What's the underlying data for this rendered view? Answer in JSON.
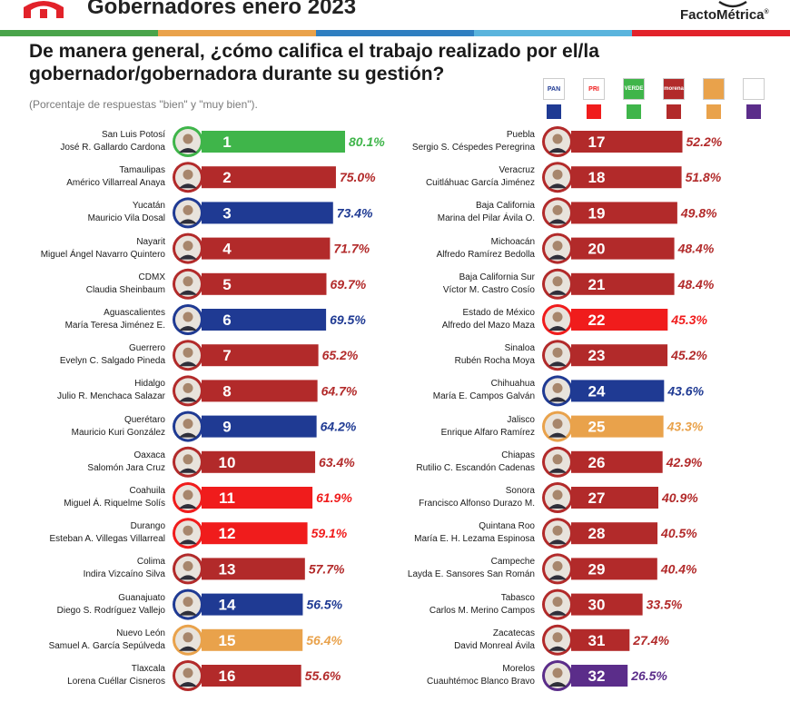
{
  "header": {
    "title": "Gobernadores enero 2023",
    "brand": "FactoMétrica"
  },
  "question": "De manera general, ¿cómo califica el trabajo realizado por el/la gobernador/gobernadora durante su gestión?",
  "note": "(Porcentaje de respuestas \"bien\" y \"muy bien\").",
  "colors": {
    "PAN": "#1f3a93",
    "PRI": "#f01c1c",
    "PVEM": "#3fb54a",
    "MORENA": "#b22a2a",
    "MC": "#e9a24b",
    "PES": "#5b2d8a",
    "stripe": [
      "#49a44a",
      "#e9a24b",
      "#2f7fc1",
      "#5ab4dd",
      "#e2222a"
    ]
  },
  "legend": [
    {
      "party": "PAN",
      "logo_text": "PAN"
    },
    {
      "party": "PRI",
      "logo_text": "PRI"
    },
    {
      "party": "PVEM",
      "logo_text": "VERDE"
    },
    {
      "party": "MORENA",
      "logo_text": "morena"
    },
    {
      "party": "MC",
      "logo_text": ""
    },
    {
      "party": "PES",
      "logo_text": ""
    }
  ],
  "chart_data": {
    "type": "bar",
    "unit": "%",
    "xlim": [
      0,
      80.1
    ],
    "left_column": [
      {
        "rank": 1,
        "state": "San Luis Potosí",
        "governor": "José R. Gallardo Cardona",
        "value": 80.1,
        "party": "PVEM"
      },
      {
        "rank": 2,
        "state": "Tamaulipas",
        "governor": "Américo Villarreal Anaya",
        "value": 75.0,
        "party": "MORENA"
      },
      {
        "rank": 3,
        "state": "Yucatán",
        "governor": "Mauricio Vila Dosal",
        "value": 73.4,
        "party": "PAN"
      },
      {
        "rank": 4,
        "state": "Nayarit",
        "governor": "Miguel Ángel Navarro Quintero",
        "value": 71.7,
        "party": "MORENA"
      },
      {
        "rank": 5,
        "state": "CDMX",
        "governor": "Claudia Sheinbaum",
        "value": 69.7,
        "party": "MORENA"
      },
      {
        "rank": 6,
        "state": "Aguascalientes",
        "governor": "María Teresa Jiménez E.",
        "value": 69.5,
        "party": "PAN"
      },
      {
        "rank": 7,
        "state": "Guerrero",
        "governor": "Evelyn C. Salgado Pineda",
        "value": 65.2,
        "party": "MORENA"
      },
      {
        "rank": 8,
        "state": "Hidalgo",
        "governor": "Julio R. Menchaca Salazar",
        "value": 64.7,
        "party": "MORENA"
      },
      {
        "rank": 9,
        "state": "Querétaro",
        "governor": "Mauricio Kuri González",
        "value": 64.2,
        "party": "PAN"
      },
      {
        "rank": 10,
        "state": "Oaxaca",
        "governor": "Salomón Jara Cruz",
        "value": 63.4,
        "party": "MORENA"
      },
      {
        "rank": 11,
        "state": "Coahuila",
        "governor": "Miguel Á. Riquelme Solís",
        "value": 61.9,
        "party": "PRI"
      },
      {
        "rank": 12,
        "state": "Durango",
        "governor": "Esteban A. Villegas Villarreal",
        "value": 59.1,
        "party": "PRI"
      },
      {
        "rank": 13,
        "state": "Colima",
        "governor": "Indira Vizcaíno Silva",
        "value": 57.7,
        "party": "MORENA"
      },
      {
        "rank": 14,
        "state": "Guanajuato",
        "governor": "Diego S. Rodríguez Vallejo",
        "value": 56.5,
        "party": "PAN"
      },
      {
        "rank": 15,
        "state": "Nuevo León",
        "governor": "Samuel A. García Sepúlveda",
        "value": 56.4,
        "party": "MC"
      },
      {
        "rank": 16,
        "state": "Tlaxcala",
        "governor": "Lorena Cuéllar Cisneros",
        "value": 55.6,
        "party": "MORENA"
      }
    ],
    "right_column": [
      {
        "rank": 17,
        "state": "Puebla",
        "governor": "Sergio S. Céspedes Peregrina",
        "value": 52.2,
        "party": "MORENA"
      },
      {
        "rank": 18,
        "state": "Veracruz",
        "governor": "Cuitláhuac García Jiménez",
        "value": 51.8,
        "party": "MORENA"
      },
      {
        "rank": 19,
        "state": "Baja California",
        "governor": "Marina del Pilar Ávila O.",
        "value": 49.8,
        "party": "MORENA"
      },
      {
        "rank": 20,
        "state": "Michoacán",
        "governor": "Alfredo Ramírez Bedolla",
        "value": 48.4,
        "party": "MORENA"
      },
      {
        "rank": 21,
        "state": "Baja California Sur",
        "governor": "Víctor M. Castro Cosío",
        "value": 48.4,
        "party": "MORENA"
      },
      {
        "rank": 22,
        "state": "Estado de México",
        "governor": "Alfredo del Mazo Maza",
        "value": 45.3,
        "party": "PRI"
      },
      {
        "rank": 23,
        "state": "Sinaloa",
        "governor": "Rubén Rocha Moya",
        "value": 45.2,
        "party": "MORENA"
      },
      {
        "rank": 24,
        "state": "Chihuahua",
        "governor": "María E. Campos Galván",
        "value": 43.6,
        "party": "PAN"
      },
      {
        "rank": 25,
        "state": "Jalisco",
        "governor": "Enrique Alfaro Ramírez",
        "value": 43.3,
        "party": "MC"
      },
      {
        "rank": 26,
        "state": "Chiapas",
        "governor": "Rutilio C. Escandón Cadenas",
        "value": 42.9,
        "party": "MORENA"
      },
      {
        "rank": 27,
        "state": "Sonora",
        "governor": "Francisco Alfonso Durazo M.",
        "value": 40.9,
        "party": "MORENA"
      },
      {
        "rank": 28,
        "state": "Quintana Roo",
        "governor": "María E. H. Lezama Espinosa",
        "value": 40.5,
        "party": "MORENA"
      },
      {
        "rank": 29,
        "state": "Campeche",
        "governor": "Layda E. Sansores San Román",
        "value": 40.4,
        "party": "MORENA"
      },
      {
        "rank": 30,
        "state": "Tabasco",
        "governor": "Carlos M. Merino Campos",
        "value": 33.5,
        "party": "MORENA"
      },
      {
        "rank": 31,
        "state": "Zacatecas",
        "governor": "David Monreal Ávila",
        "value": 27.4,
        "party": "MORENA"
      },
      {
        "rank": 32,
        "state": "Morelos",
        "governor": "Cuauhtémoc Blanco Bravo",
        "value": 26.5,
        "party": "PES"
      }
    ]
  }
}
